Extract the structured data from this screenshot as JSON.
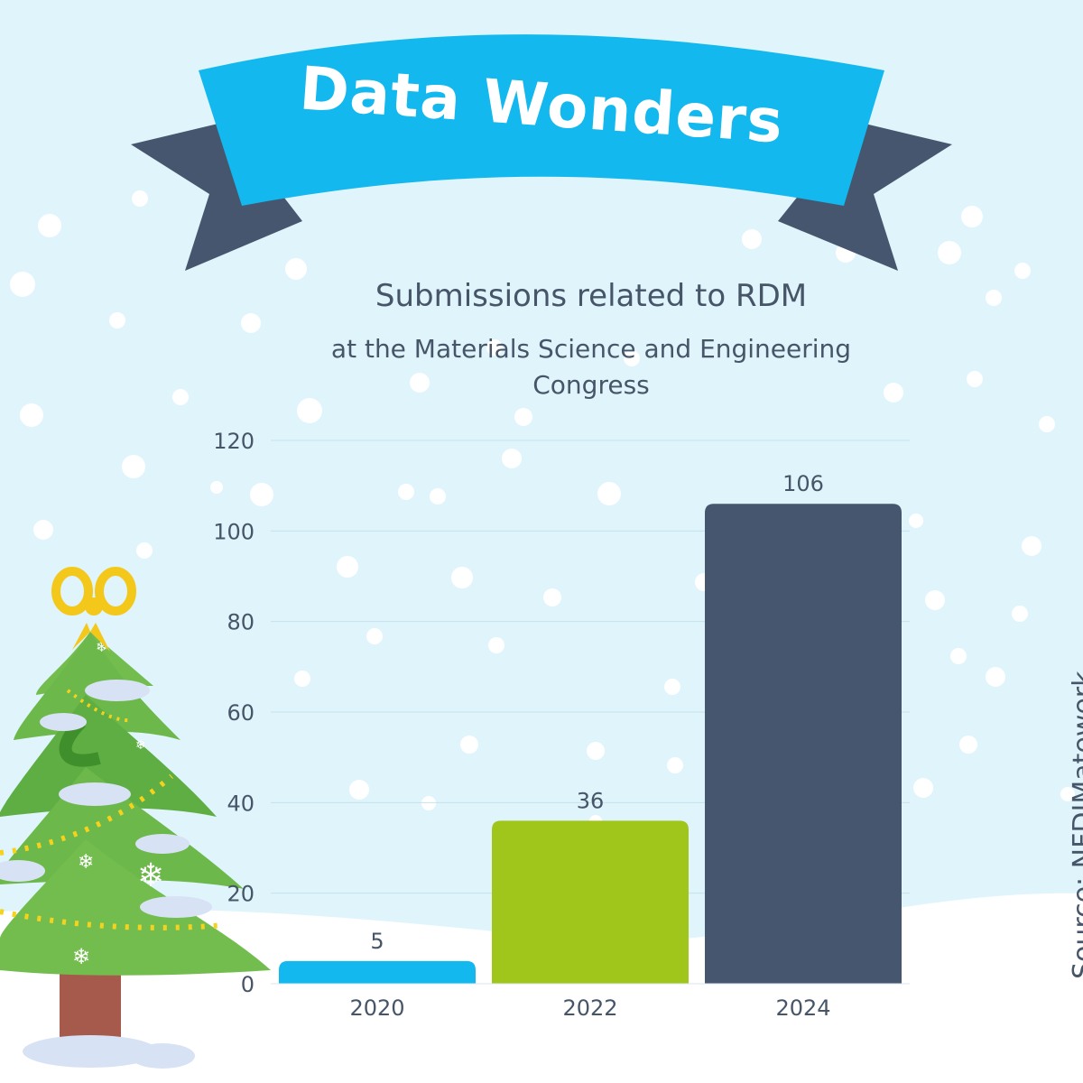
{
  "banner": {
    "title": "Data Wonders"
  },
  "chart_data": {
    "type": "bar",
    "title": "Submissions related to RDM",
    "subtitle": "at the Materials Science and Engineering Congress",
    "categories": [
      "2020",
      "2022",
      "2024"
    ],
    "values": [
      5,
      36,
      106
    ],
    "data_labels": [
      "5",
      "36",
      "106"
    ],
    "ylim": [
      0,
      120
    ],
    "yticks": [
      "0",
      "20",
      "40",
      "60",
      "80",
      "100",
      "120"
    ],
    "xlabel": "",
    "ylabel": "",
    "grid": true,
    "colors": [
      "#12b8ee",
      "#a1c61b",
      "#46566e"
    ]
  },
  "source": "Source: NFDIMatewerk"
}
